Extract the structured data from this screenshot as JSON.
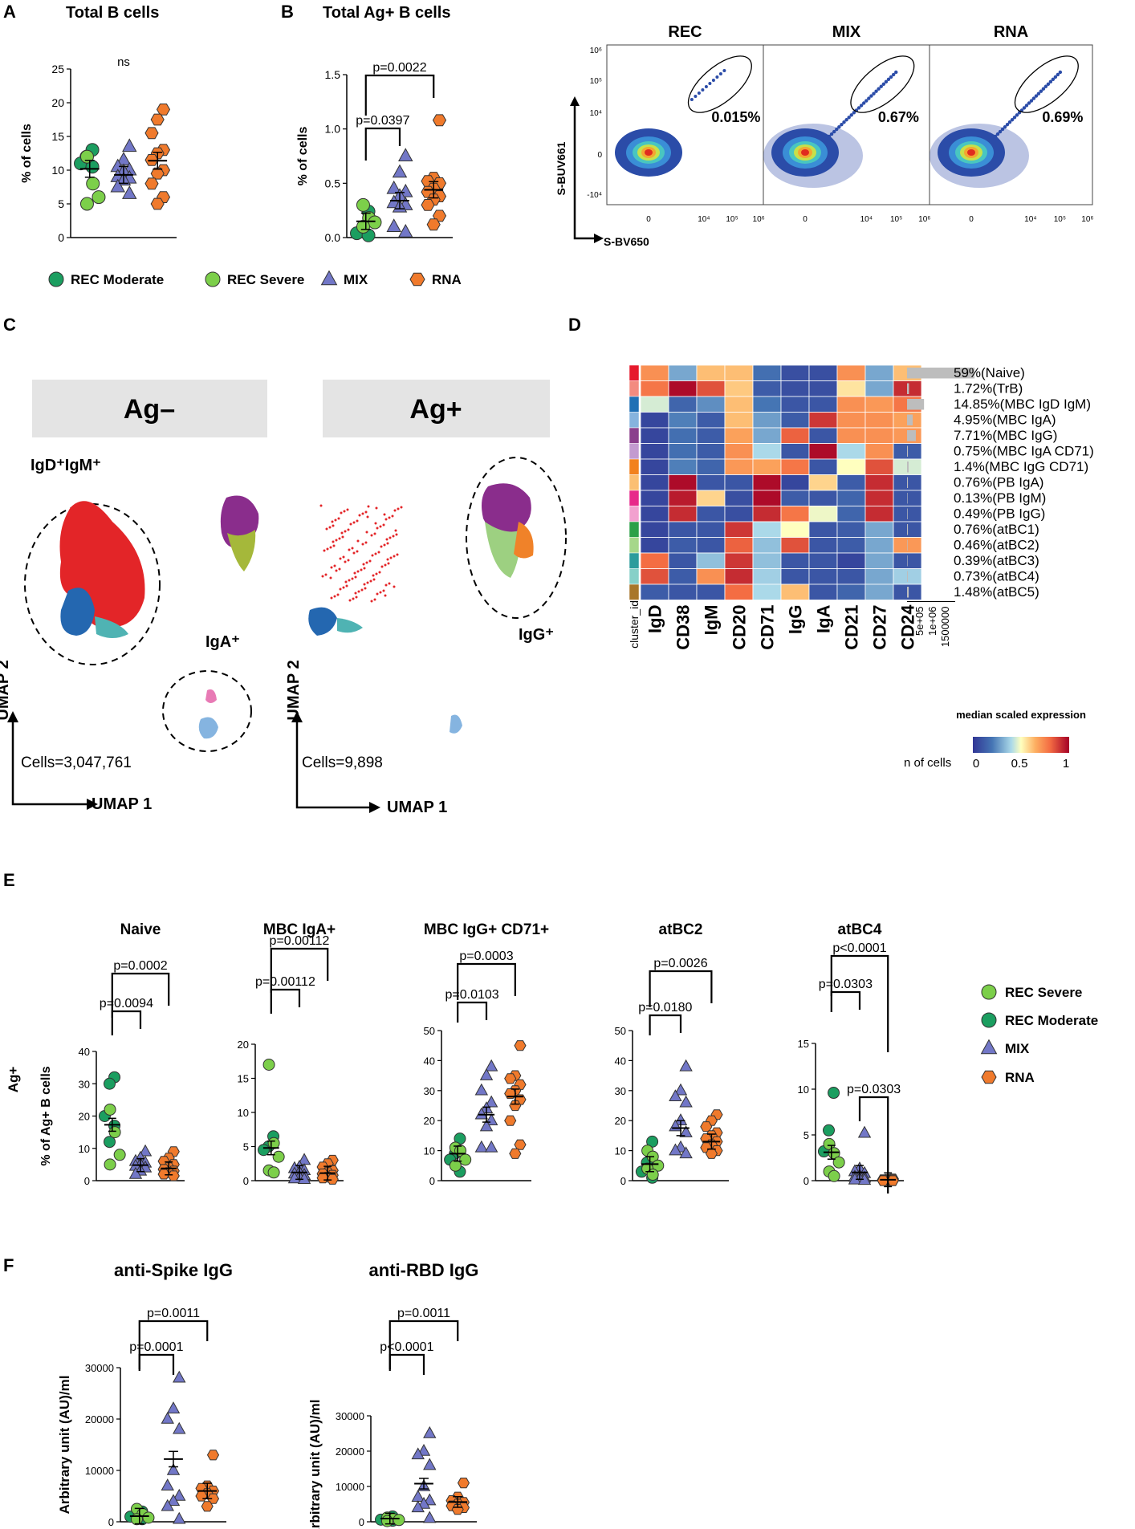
{
  "panel_letters": {
    "A": "A",
    "B": "B",
    "C": "C",
    "D": "D",
    "E": "E",
    "F": "F"
  },
  "colors": {
    "rec_moderate": "#1b9e60",
    "rec_severe": "#7ccf4a",
    "mix": "#7277c7",
    "rna": "#f07a2c",
    "outline": "#333333"
  },
  "legend_top": [
    {
      "label": "REC Moderate",
      "shape": "circle",
      "color": "#1b9e60"
    },
    {
      "label": "REC Severe",
      "shape": "circle",
      "color": "#7ccf4a"
    },
    {
      "label": "MIX",
      "shape": "triangle",
      "color": "#7277c7"
    },
    {
      "label": "RNA",
      "shape": "hexagon",
      "color": "#f07a2c"
    }
  ],
  "legend_e": [
    {
      "label": "REC Severe",
      "shape": "circle",
      "color": "#7ccf4a"
    },
    {
      "label": "REC Moderate",
      "shape": "circle",
      "color": "#1b9e60"
    },
    {
      "label": "MIX",
      "shape": "triangle",
      "color": "#7277c7"
    },
    {
      "label": "RNA",
      "shape": "hexagon",
      "color": "#f07a2c"
    }
  ],
  "flow": {
    "panels": [
      {
        "title": "REC",
        "pct": "0.015%"
      },
      {
        "title": "MIX",
        "pct": "0.67%"
      },
      {
        "title": "RNA",
        "pct": "0.69%"
      }
    ],
    "ylabel": "S-BUV661",
    "xlabel": "S-BV650",
    "yticks": [
      "10⁶",
      "10⁵",
      "10⁴",
      "0",
      "-10⁴"
    ],
    "xticks": [
      "0",
      "10⁴",
      "10⁵",
      "10⁶"
    ]
  },
  "umap": {
    "left_header": "Ag–",
    "right_header": "Ag+",
    "label_igd": "IgD⁺IgM⁺",
    "label_iga": "IgA⁺",
    "label_igg": "IgG⁺",
    "cells_left": "Cells=3,047,761",
    "cells_right": "Cells=9,898",
    "axis_y": "UMAP 2",
    "axis_x": "UMAP 1"
  },
  "heatmap": {
    "markers": [
      "IgD",
      "CD38",
      "IgM",
      "CD20",
      "CD71",
      "IgG",
      "IgA",
      "CD21",
      "CD27",
      "CD24"
    ],
    "cluster_col_label": "cluster_id",
    "cluster_colors": [
      "#e6192c",
      "#f38b80",
      "#1f6fb5",
      "#86b3de",
      "#8a3f8c",
      "#c39bd0",
      "#f2811d",
      "#fbbf72",
      "#e7298a",
      "#f2a1cf",
      "#2ca048",
      "#a6d78a",
      "#2d9c9c",
      "#86d0c8",
      "#a8762a"
    ],
    "labels": [
      "59%(Naive)",
      "1.72%(TrB)",
      "14.85%(MBC IgD IgM)",
      "4.95%(MBC IgA)",
      "7.71%(MBC IgG)",
      "0.75%(MBC IgA CD71)",
      "1.4%(MBC IgG CD71)",
      "0.76%(PB IgA)",
      "0.13%(PB IgM)",
      "0.49%(PB IgG)",
      "0.76%(atBC1)",
      "0.46%(atBC2)",
      "0.39%(atBC3)",
      "0.73%(atBC4)",
      "1.48%(atBC5)"
    ],
    "values": [
      [
        0.72,
        0.3,
        0.62,
        0.62,
        0.18,
        0.08,
        0.08,
        0.72,
        0.3,
        0.62
      ],
      [
        0.78,
        0.98,
        0.85,
        0.6,
        0.12,
        0.08,
        0.08,
        0.55,
        0.3,
        0.92
      ],
      [
        0.45,
        0.15,
        0.25,
        0.62,
        0.2,
        0.1,
        0.1,
        0.72,
        0.7,
        0.78
      ],
      [
        0.05,
        0.22,
        0.12,
        0.62,
        0.28,
        0.12,
        0.9,
        0.72,
        0.72,
        0.68
      ],
      [
        0.05,
        0.18,
        0.12,
        0.68,
        0.3,
        0.82,
        0.1,
        0.72,
        0.72,
        0.7
      ],
      [
        0.05,
        0.18,
        0.12,
        0.72,
        0.4,
        0.1,
        0.98,
        0.4,
        0.72,
        0.12
      ],
      [
        0.05,
        0.22,
        0.15,
        0.7,
        0.68,
        0.78,
        0.1,
        0.5,
        0.85,
        0.45
      ],
      [
        0.05,
        0.98,
        0.1,
        0.1,
        0.98,
        0.05,
        0.58,
        0.12,
        0.92,
        0.1
      ],
      [
        0.05,
        0.95,
        0.58,
        0.08,
        0.98,
        0.12,
        0.1,
        0.15,
        0.92,
        0.1
      ],
      [
        0.05,
        0.92,
        0.1,
        0.08,
        0.92,
        0.78,
        0.48,
        0.15,
        0.92,
        0.1
      ],
      [
        0.05,
        0.1,
        0.1,
        0.9,
        0.4,
        0.5,
        0.1,
        0.12,
        0.3,
        0.1
      ],
      [
        0.05,
        0.12,
        0.1,
        0.82,
        0.35,
        0.85,
        0.1,
        0.12,
        0.3,
        0.7
      ],
      [
        0.8,
        0.1,
        0.35,
        0.9,
        0.35,
        0.1,
        0.1,
        0.05,
        0.3,
        0.1
      ],
      [
        0.85,
        0.12,
        0.72,
        0.92,
        0.38,
        0.1,
        0.1,
        0.1,
        0.3,
        0.38
      ],
      [
        0.12,
        0.1,
        0.1,
        0.8,
        0.4,
        0.62,
        0.1,
        0.15,
        0.3,
        0.1
      ]
    ],
    "ncells_fraction": [
      0.59,
      0.017,
      0.1485,
      0.0495,
      0.0771,
      0.0075,
      0.014,
      0.0076,
      0.0013,
      0.0049,
      0.0076,
      0.0046,
      0.0039,
      0.0073,
      0.0148
    ],
    "ncells_ticks": [
      "0",
      "5e+05",
      "1e+06",
      "1500000"
    ],
    "ncells_label": "n of cells",
    "scale_title": "median scaled expression",
    "scale_ticks": [
      "0",
      "0.5",
      "1"
    ]
  },
  "chart_data": [
    {
      "id": "A",
      "type": "scatter",
      "title": "Total B cells",
      "ylabel": "% of cells",
      "ylim": [
        0,
        25
      ],
      "yticks": [
        0,
        5,
        10,
        15,
        20,
        25
      ],
      "annotations": [
        "ns"
      ],
      "brackets": [],
      "series": [
        {
          "name": "REC Moderate",
          "values": [
            13,
            12,
            11,
            10.5
          ]
        },
        {
          "name": "REC Severe",
          "values": [
            12,
            8,
            6,
            5
          ]
        },
        {
          "name": "MIX",
          "values": [
            13.5,
            11.5,
            10.5,
            10,
            9.8,
            9,
            8.8,
            8.5,
            7.5,
            6.5
          ]
        },
        {
          "name": "RNA",
          "values": [
            19,
            17.5,
            15.5,
            13,
            12.5,
            11.5,
            10,
            9.5,
            8,
            6,
            5
          ]
        }
      ],
      "means": [
        10.2,
        9.3,
        11.4
      ]
    },
    {
      "id": "B",
      "type": "scatter",
      "title": "Total Ag+ B cells",
      "ylabel": "% of cells",
      "ylim": [
        0,
        1.5
      ],
      "yticks": [
        "0.0",
        "0.5",
        "1.0",
        "1.5"
      ],
      "brackets": [
        {
          "from": 0,
          "to": 1,
          "label": "p=0.0397"
        },
        {
          "from": 0,
          "to": 2,
          "label": "p=0.0022"
        }
      ],
      "series": [
        {
          "name": "REC Moderate",
          "values": [
            0.24,
            0.08,
            0.04,
            0.02
          ]
        },
        {
          "name": "REC Severe",
          "values": [
            0.3,
            0.18,
            0.14,
            0.1
          ]
        },
        {
          "name": "MIX",
          "values": [
            0.75,
            0.6,
            0.45,
            0.42,
            0.38,
            0.32,
            0.3,
            0.28,
            0.1,
            0.05
          ]
        },
        {
          "name": "RNA",
          "values": [
            1.08,
            0.55,
            0.52,
            0.5,
            0.45,
            0.42,
            0.38,
            0.35,
            0.3,
            0.2,
            0.12
          ]
        }
      ],
      "means": [
        0.15,
        0.34,
        0.44
      ]
    },
    {
      "id": "E1",
      "type": "scatter",
      "title": "Naive",
      "ylabel": "% of Ag+ B cells",
      "row_label": "Ag+",
      "ylim": [
        0,
        40
      ],
      "yticks": [
        0,
        10,
        20,
        30,
        40
      ],
      "brackets": [
        {
          "from": 0,
          "to": 1,
          "label": "p=0.0094"
        },
        {
          "from": 0,
          "to": 2,
          "label": "p=0.0002"
        }
      ],
      "series": [
        {
          "name": "REC Moderate",
          "values": [
            32,
            30,
            20,
            17,
            12
          ]
        },
        {
          "name": "REC Severe",
          "values": [
            22,
            15,
            8,
            5
          ]
        },
        {
          "name": "MIX",
          "values": [
            9,
            7,
            6,
            5.5,
            5,
            4.5,
            4,
            3,
            2
          ]
        },
        {
          "name": "RNA",
          "values": [
            9,
            7,
            6,
            5,
            4,
            3.5,
            3,
            2.5,
            2,
            1.5
          ]
        }
      ],
      "means": [
        17.3,
        4.8,
        3.8
      ]
    },
    {
      "id": "E2",
      "type": "scatter",
      "title": "MBC IgA+",
      "ylim": [
        0,
        20
      ],
      "yticks": [
        0,
        5,
        10,
        15,
        20
      ],
      "brackets": [
        {
          "from": 0,
          "to": 1,
          "label": "p=0.00112"
        },
        {
          "from": 0,
          "to": 2,
          "label": "p=0.00112"
        }
      ],
      "series": [
        {
          "name": "REC Moderate",
          "values": [
            6.5,
            5,
            4.5
          ]
        },
        {
          "name": "REC Severe",
          "values": [
            17,
            5.5,
            3.5,
            1.5,
            1.2
          ]
        },
        {
          "name": "MIX",
          "values": [
            3,
            2,
            1.8,
            1.5,
            1.2,
            1,
            0.8,
            0.5,
            0.3,
            0.2
          ]
        },
        {
          "name": "RNA",
          "values": [
            3,
            2.5,
            2,
            1.5,
            1.2,
            1,
            0.8,
            0.5,
            0.4,
            0.2
          ]
        }
      ],
      "means": [
        4.8,
        1.2,
        1.1
      ]
    },
    {
      "id": "E3",
      "type": "scatter",
      "title": "MBC IgG+ CD71+",
      "ylim": [
        0,
        50
      ],
      "yticks": [
        0,
        10,
        20,
        30,
        40,
        50
      ],
      "brackets": [
        {
          "from": 0,
          "to": 1,
          "label": "p=0.0103"
        },
        {
          "from": 0,
          "to": 2,
          "label": "p=0.0003"
        }
      ],
      "series": [
        {
          "name": "REC Moderate",
          "values": [
            14,
            9,
            7,
            3
          ]
        },
        {
          "name": "REC Severe",
          "values": [
            11,
            10,
            7,
            5
          ]
        },
        {
          "name": "MIX",
          "values": [
            38,
            35,
            30,
            26,
            24,
            22,
            20,
            18,
            11,
            11
          ]
        },
        {
          "name": "RNA",
          "values": [
            45,
            35,
            34,
            32,
            30,
            29,
            27,
            25,
            20,
            12,
            9
          ]
        }
      ],
      "means": [
        9,
        22,
        28
      ]
    },
    {
      "id": "E4",
      "type": "scatter",
      "title": "atBC2",
      "ylim": [
        0,
        50
      ],
      "yticks": [
        0,
        10,
        20,
        30,
        40,
        50
      ],
      "brackets": [
        {
          "from": 0,
          "to": 1,
          "label": "p=0.0180"
        },
        {
          "from": 0,
          "to": 2,
          "label": "p=0.0026"
        }
      ],
      "series": [
        {
          "name": "REC Moderate",
          "values": [
            13,
            6,
            3,
            1
          ]
        },
        {
          "name": "REC Severe",
          "values": [
            10,
            8,
            5,
            4,
            2
          ]
        },
        {
          "name": "MIX",
          "values": [
            38,
            30,
            28,
            26,
            20,
            18,
            16,
            11,
            10,
            9
          ]
        },
        {
          "name": "RNA",
          "values": [
            22,
            20,
            18,
            16,
            15,
            14,
            13,
            12,
            11,
            10,
            9
          ]
        }
      ],
      "means": [
        5.5,
        17.5,
        13
      ]
    },
    {
      "id": "E5",
      "type": "scatter",
      "title": "atBC4",
      "ylim": [
        0,
        15
      ],
      "yticks": [
        0,
        5,
        10,
        15
      ],
      "brackets": [
        {
          "from": 0,
          "to": 1,
          "label": "p=0.0303"
        },
        {
          "from": 0,
          "to": 2,
          "label": "p<0.0001"
        },
        {
          "from": 1,
          "to": 2,
          "label": "p=0.0303"
        }
      ],
      "series": [
        {
          "name": "REC Moderate",
          "values": [
            9.6,
            5.5,
            3.2
          ]
        },
        {
          "name": "REC Severe",
          "values": [
            4,
            3,
            2,
            1,
            0.5
          ]
        },
        {
          "name": "MIX",
          "values": [
            5.2,
            1.3,
            1,
            0.8,
            0.5,
            0.4,
            0.3,
            0.2,
            0.1,
            0.05
          ]
        },
        {
          "name": "RNA",
          "values": [
            0.2,
            0.15,
            0.1,
            0.1,
            0.05,
            0.05,
            0,
            0,
            0,
            0
          ]
        }
      ],
      "means": [
        3.1,
        0.9,
        0.1
      ]
    },
    {
      "id": "F1",
      "type": "scatter",
      "title": "anti-Spike IgG",
      "ylabel": "Arbitrary unit (AU)/ml",
      "ylim": [
        0,
        30000
      ],
      "yticks": [
        0,
        10000,
        20000,
        30000
      ],
      "brackets": [
        {
          "from": 0,
          "to": 1,
          "label": "p=0.0001"
        },
        {
          "from": 0,
          "to": 2,
          "label": "p=0.0011"
        }
      ],
      "series": [
        {
          "name": "REC Moderate",
          "values": [
            2000,
            1500,
            1000,
            500
          ]
        },
        {
          "name": "REC Severe",
          "values": [
            2500,
            1500,
            800,
            500
          ]
        },
        {
          "name": "MIX",
          "values": [
            28000,
            22000,
            20000,
            18000,
            10000,
            7000,
            5000,
            4000,
            3000,
            500
          ]
        },
        {
          "name": "RNA",
          "values": [
            13000,
            7000,
            6500,
            6000,
            5500,
            5000,
            4500,
            3000
          ]
        }
      ],
      "means": [
        1100,
        12200,
        6000
      ]
    },
    {
      "id": "F2",
      "type": "scatter",
      "title": "anti-RBD IgG",
      "ylabel": "Arbitrary unit (AU)/ml",
      "ylim": [
        0,
        30000
      ],
      "yticks": [
        0,
        10000,
        20000,
        30000
      ],
      "brackets": [
        {
          "from": 0,
          "to": 1,
          "label": "p<0.0001"
        },
        {
          "from": 0,
          "to": 2,
          "label": "p=0.0011"
        }
      ],
      "series": [
        {
          "name": "REC Moderate",
          "values": [
            1500,
            1000,
            600,
            300
          ]
        },
        {
          "name": "REC Severe",
          "values": [
            1200,
            800,
            500,
            200
          ]
        },
        {
          "name": "MIX",
          "values": [
            25000,
            20000,
            19000,
            16000,
            10000,
            7000,
            6000,
            5000,
            4000,
            1000
          ]
        },
        {
          "name": "RNA",
          "values": [
            11000,
            7000,
            6000,
            5500,
            5000,
            4500,
            4000,
            3500
          ]
        }
      ],
      "means": [
        900,
        10800,
        5600
      ]
    }
  ]
}
